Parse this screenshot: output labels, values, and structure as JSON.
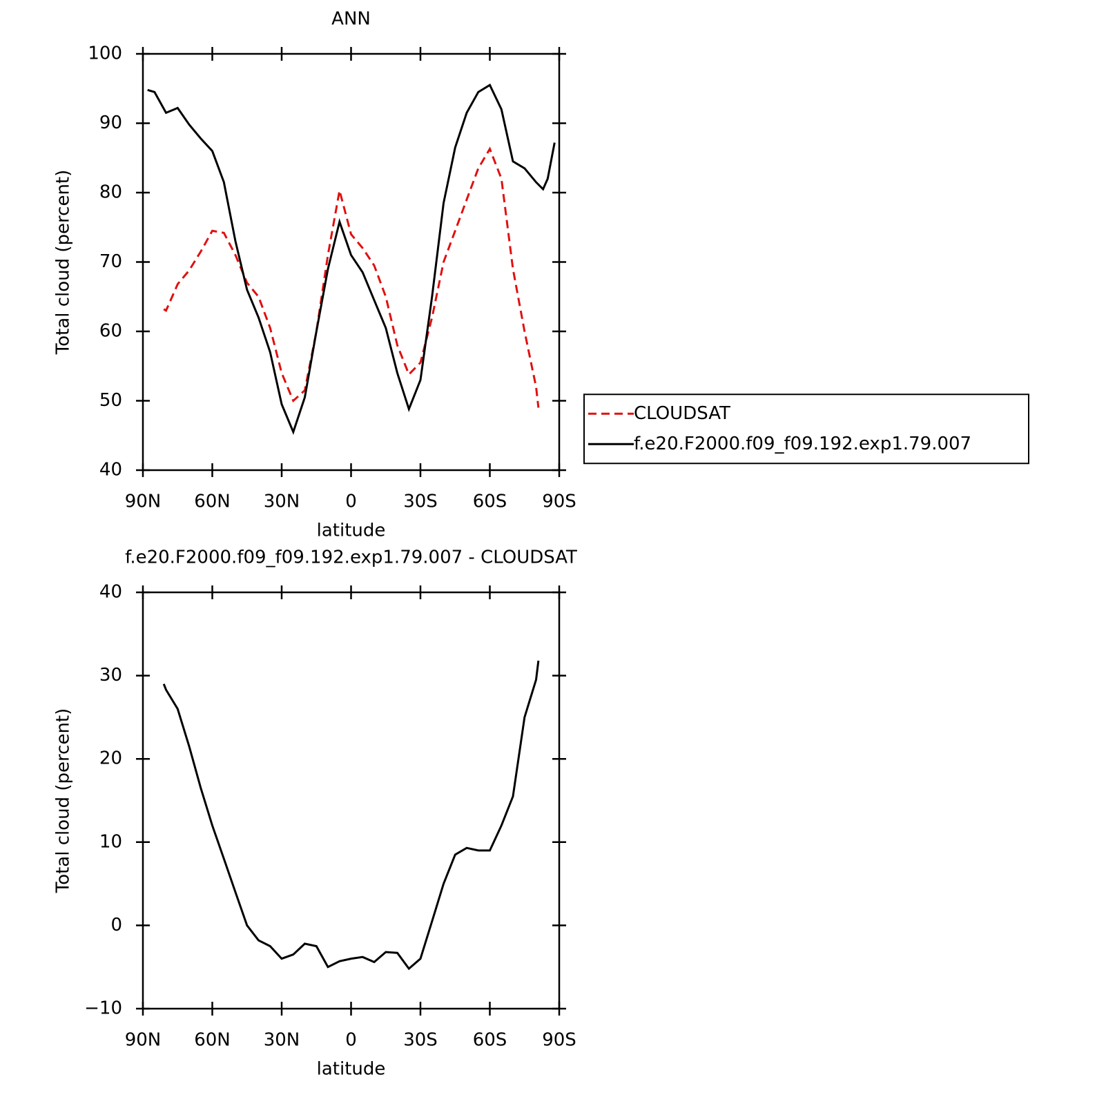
{
  "chart_data": [
    {
      "type": "line",
      "title": "ANN",
      "xlabel": "latitude",
      "ylabel": "Total cloud (percent)",
      "xlim": [
        90,
        -90
      ],
      "xticks": [
        {
          "value": 90,
          "label": "90N"
        },
        {
          "value": 60,
          "label": "60N"
        },
        {
          "value": 30,
          "label": "30N"
        },
        0,
        {
          "value": -30,
          "label": "30S"
        },
        {
          "value": -60,
          "label": "60S"
        },
        {
          "value": -90,
          "label": "90S"
        }
      ],
      "ylim": [
        40,
        100
      ],
      "yticks": [
        40,
        50,
        60,
        70,
        80,
        90,
        100
      ],
      "legend": "right",
      "series": [
        {
          "name": "CLOUDSAT",
          "color": "#e01010",
          "dashed": true,
          "x": [
            81,
            80,
            75,
            70,
            65,
            60,
            55,
            50,
            45,
            40,
            35,
            30,
            25,
            20,
            15,
            10,
            5,
            0,
            -5,
            -10,
            -15,
            -20,
            -25,
            -30,
            -35,
            -40,
            -45,
            -50,
            -55,
            -60,
            -65,
            -70,
            -75,
            -80,
            -81
          ],
          "values": [
            63.2,
            63,
            66.8,
            68.8,
            71.5,
            74.5,
            74.2,
            71,
            67,
            65,
            60.5,
            54,
            50,
            51.5,
            60,
            71,
            80.3,
            74,
            72,
            69.5,
            65,
            58,
            53.8,
            55.5,
            62,
            70,
            74.5,
            79,
            83.5,
            86.3,
            82,
            69,
            60,
            52,
            49
          ]
        },
        {
          "name": "f.e20.F2000.f09_f09.192.exp1.79.007",
          "color": "#000000",
          "dashed": false,
          "x": [
            88,
            85,
            80,
            75,
            70,
            65,
            60,
            55,
            50,
            45,
            40,
            35,
            30,
            25,
            20,
            15,
            10,
            5,
            0,
            -5,
            -10,
            -15,
            -20,
            -25,
            -30,
            -35,
            -40,
            -45,
            -50,
            -55,
            -60,
            -65,
            -70,
            -75,
            -80,
            -83,
            -85,
            -88
          ],
          "values": [
            94.8,
            94.5,
            91.5,
            92.2,
            89.8,
            87.8,
            86,
            81.5,
            73,
            66,
            62,
            57,
            49.5,
            45.5,
            50.5,
            60,
            69,
            75.8,
            71,
            68.5,
            64.5,
            60.5,
            54,
            48.8,
            53,
            65,
            78.5,
            86.5,
            91.5,
            94.5,
            95.5,
            92,
            84.5,
            83.5,
            81.5,
            80.5,
            82,
            87.2
          ]
        }
      ]
    },
    {
      "type": "line",
      "title": "f.e20.F2000.f09_f09.192.exp1.79.007 - CLOUDSAT",
      "xlabel": "latitude",
      "ylabel": "Total cloud (percent)",
      "xlim": [
        90,
        -90
      ],
      "xticks": [
        {
          "value": 90,
          "label": "90N"
        },
        {
          "value": 60,
          "label": "60N"
        },
        {
          "value": 30,
          "label": "30N"
        },
        0,
        {
          "value": -30,
          "label": "30S"
        },
        {
          "value": -60,
          "label": "60S"
        },
        {
          "value": -90,
          "label": "90S"
        }
      ],
      "ylim": [
        -10,
        40
      ],
      "yticks": [
        {
          "value": -10,
          "label": "−10"
        },
        0,
        10,
        20,
        30,
        40
      ],
      "series": [
        {
          "color": "#000000",
          "dashed": false,
          "x": [
            81,
            80,
            75,
            70,
            65,
            60,
            55,
            50,
            45,
            40,
            35,
            30,
            25,
            20,
            15,
            10,
            5,
            0,
            -5,
            -10,
            -15,
            -20,
            -25,
            -30,
            -35,
            -40,
            -45,
            -50,
            -55,
            -60,
            -65,
            -70,
            -75,
            -80,
            -81
          ],
          "values": [
            29,
            28.3,
            26,
            21.5,
            16.5,
            12,
            8,
            4,
            0,
            -1.8,
            -2.5,
            -4,
            -3.5,
            -2.2,
            -2.5,
            -5,
            -4.3,
            -4,
            -3.8,
            -4.4,
            -3.2,
            -3.3,
            -5.2,
            -4,
            0.5,
            5,
            8.5,
            9.3,
            9,
            9,
            12,
            15.5,
            25,
            29.5,
            31.8
          ]
        }
      ]
    }
  ]
}
